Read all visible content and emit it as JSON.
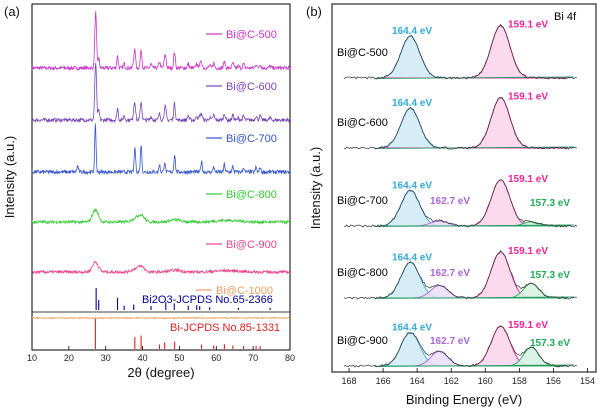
{
  "chart_data": [
    {
      "type": "line",
      "panel_label": "(a)",
      "xlabel": "2θ (degree)",
      "ylabel": "Intensity (a.u.)",
      "xlim": [
        10,
        80
      ],
      "xticks": [
        "10",
        "20",
        "30",
        "40",
        "50",
        "60",
        "70",
        "80"
      ],
      "series": [
        {
          "name": "Bi@C-500",
          "color": "#cc33cc",
          "style": "bi_crystalline",
          "strength": 0.9
        },
        {
          "name": "Bi@C-600",
          "color": "#7744bb",
          "style": "bi_crystalline",
          "strength": 0.95
        },
        {
          "name": "Bi@C-700",
          "color": "#3355cc",
          "style": "bi_sharp",
          "strength": 1.0
        },
        {
          "name": "Bi@C-800",
          "color": "#33cc33",
          "style": "broad",
          "strength": 0.55
        },
        {
          "name": "Bi@C-900",
          "color": "#ee4488",
          "style": "broad",
          "strength": 0.45
        },
        {
          "name": "Bi@C-1000",
          "color": "#f0a060",
          "style": "flat",
          "strength": 0.0
        }
      ],
      "references": [
        {
          "name": "Bi2O3-JCPDS No.65-2366",
          "color": "#000099",
          "peaks": [
            [
              27.4,
              1.0
            ],
            [
              28.1,
              0.45
            ],
            [
              33.2,
              0.55
            ],
            [
              35.0,
              0.2
            ],
            [
              37.6,
              0.25
            ],
            [
              42.3,
              0.18
            ],
            [
              46.3,
              0.35
            ],
            [
              48.6,
              0.3
            ],
            [
              52.4,
              0.2
            ],
            [
              54.7,
              0.22
            ],
            [
              55.5,
              0.18
            ],
            [
              58.2,
              0.12
            ],
            [
              66.0,
              0.1
            ],
            [
              74.6,
              0.1
            ]
          ]
        },
        {
          "name": "Bi-JCPDS No.85-1331",
          "color": "#dd2222",
          "peaks": [
            [
              27.2,
              1.0
            ],
            [
              37.9,
              0.4
            ],
            [
              39.6,
              0.45
            ],
            [
              44.6,
              0.15
            ],
            [
              46.0,
              0.22
            ],
            [
              48.7,
              0.25
            ],
            [
              56.0,
              0.15
            ],
            [
              59.3,
              0.12
            ],
            [
              62.2,
              0.16
            ],
            [
              64.5,
              0.12
            ],
            [
              67.4,
              0.1
            ],
            [
              70.8,
              0.1
            ],
            [
              71.9,
              0.1
            ]
          ]
        }
      ]
    },
    {
      "type": "line",
      "panel_label": "(b)",
      "title": "Bi 4f",
      "xlabel": "Binding Energy (eV)",
      "ylabel": "Intensity (a.u.)",
      "xlim": [
        169,
        153.5
      ],
      "xticks": [
        "168",
        "166",
        "164",
        "162",
        "160",
        "158",
        "156",
        "154"
      ],
      "peak_colors": {
        "p1644": "#33aadd",
        "p1591": "#ee2299",
        "p1627": "#aa66dd",
        "p1573": "#22aa55"
      },
      "peak_fills": {
        "p1644": "#cfeaf6",
        "p1591": "#fbd3ea",
        "p1627": "#eaddf7",
        "p1573": "#d3f1e0"
      },
      "series": [
        {
          "name": "Bi@C-500",
          "peaks": [
            {
              "label": "164.4 eV",
              "center": 164.4,
              "height": 1.0,
              "key": "p1644"
            },
            {
              "label": "159.1 eV",
              "center": 159.1,
              "height": 1.25,
              "key": "p1591"
            }
          ]
        },
        {
          "name": "Bi@C-600",
          "peaks": [
            {
              "label": "164.4 eV",
              "center": 164.4,
              "height": 0.95,
              "key": "p1644"
            },
            {
              "label": "159.1 eV",
              "center": 159.1,
              "height": 1.2,
              "key": "p1591"
            }
          ]
        },
        {
          "name": "Bi@C-700",
          "peaks": [
            {
              "label": "164.4 eV",
              "center": 164.4,
              "height": 0.85,
              "key": "p1644"
            },
            {
              "label": "162.7 eV",
              "center": 162.7,
              "height": 0.12,
              "key": "p1627"
            },
            {
              "label": "159.1 eV",
              "center": 159.1,
              "height": 1.1,
              "key": "p1591"
            },
            {
              "label": "157.3 eV",
              "center": 157.3,
              "height": 0.1,
              "key": "p1573"
            }
          ]
        },
        {
          "name": "Bi@C-800",
          "peaks": [
            {
              "label": "164.4 eV",
              "center": 164.4,
              "height": 0.85,
              "key": "p1644"
            },
            {
              "label": "162.7 eV",
              "center": 162.7,
              "height": 0.3,
              "key": "p1627"
            },
            {
              "label": "159.1 eV",
              "center": 159.1,
              "height": 1.1,
              "key": "p1591"
            },
            {
              "label": "157.3 eV",
              "center": 157.3,
              "height": 0.35,
              "key": "p1573"
            }
          ]
        },
        {
          "name": "Bi@C-900",
          "peaks": [
            {
              "label": "164.4 eV",
              "center": 164.4,
              "height": 0.8,
              "key": "p1644"
            },
            {
              "label": "162.7 eV",
              "center": 162.7,
              "height": 0.35,
              "key": "p1627"
            },
            {
              "label": "159.1 eV",
              "center": 159.1,
              "height": 0.95,
              "key": "p1591"
            },
            {
              "label": "157.3 eV",
              "center": 157.3,
              "height": 0.45,
              "key": "p1573"
            }
          ]
        }
      ]
    }
  ]
}
